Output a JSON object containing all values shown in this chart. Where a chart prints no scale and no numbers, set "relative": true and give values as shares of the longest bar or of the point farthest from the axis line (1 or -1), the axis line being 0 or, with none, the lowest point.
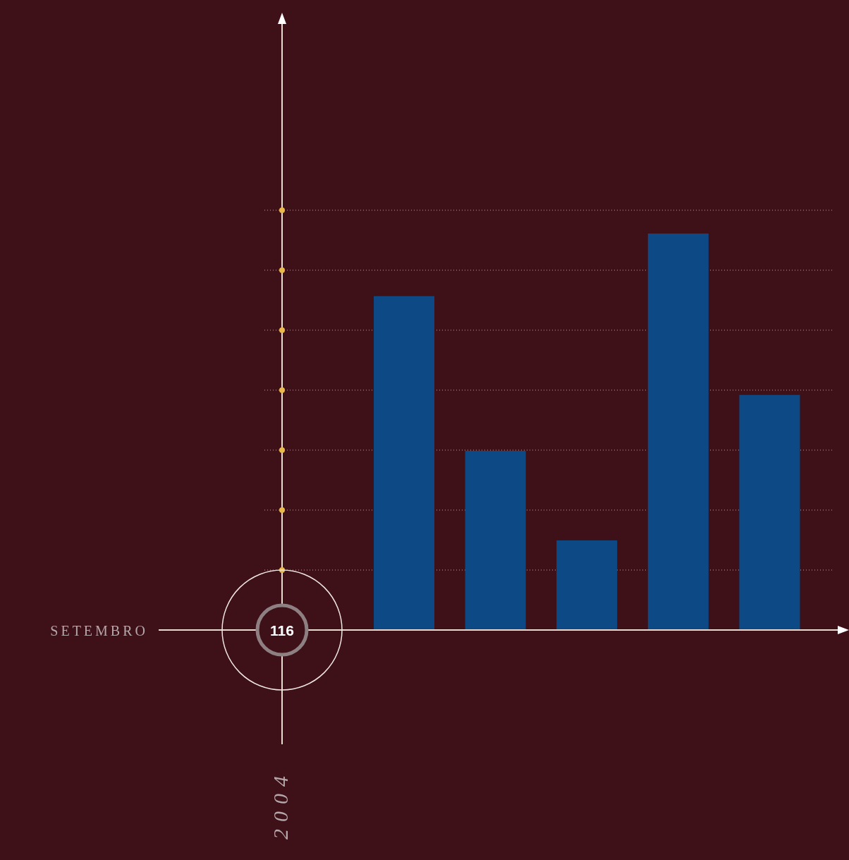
{
  "chart_data": {
    "type": "bar",
    "relative": true,
    "categories": [
      null,
      null,
      null,
      null,
      null
    ],
    "values": [
      0.842,
      0.452,
      0.226,
      1,
      0.593
    ],
    "color": "#0d4a85",
    "grid": "y",
    "annotations": [
      "SETEMBRO",
      "116",
      "2004"
    ]
  }
}
